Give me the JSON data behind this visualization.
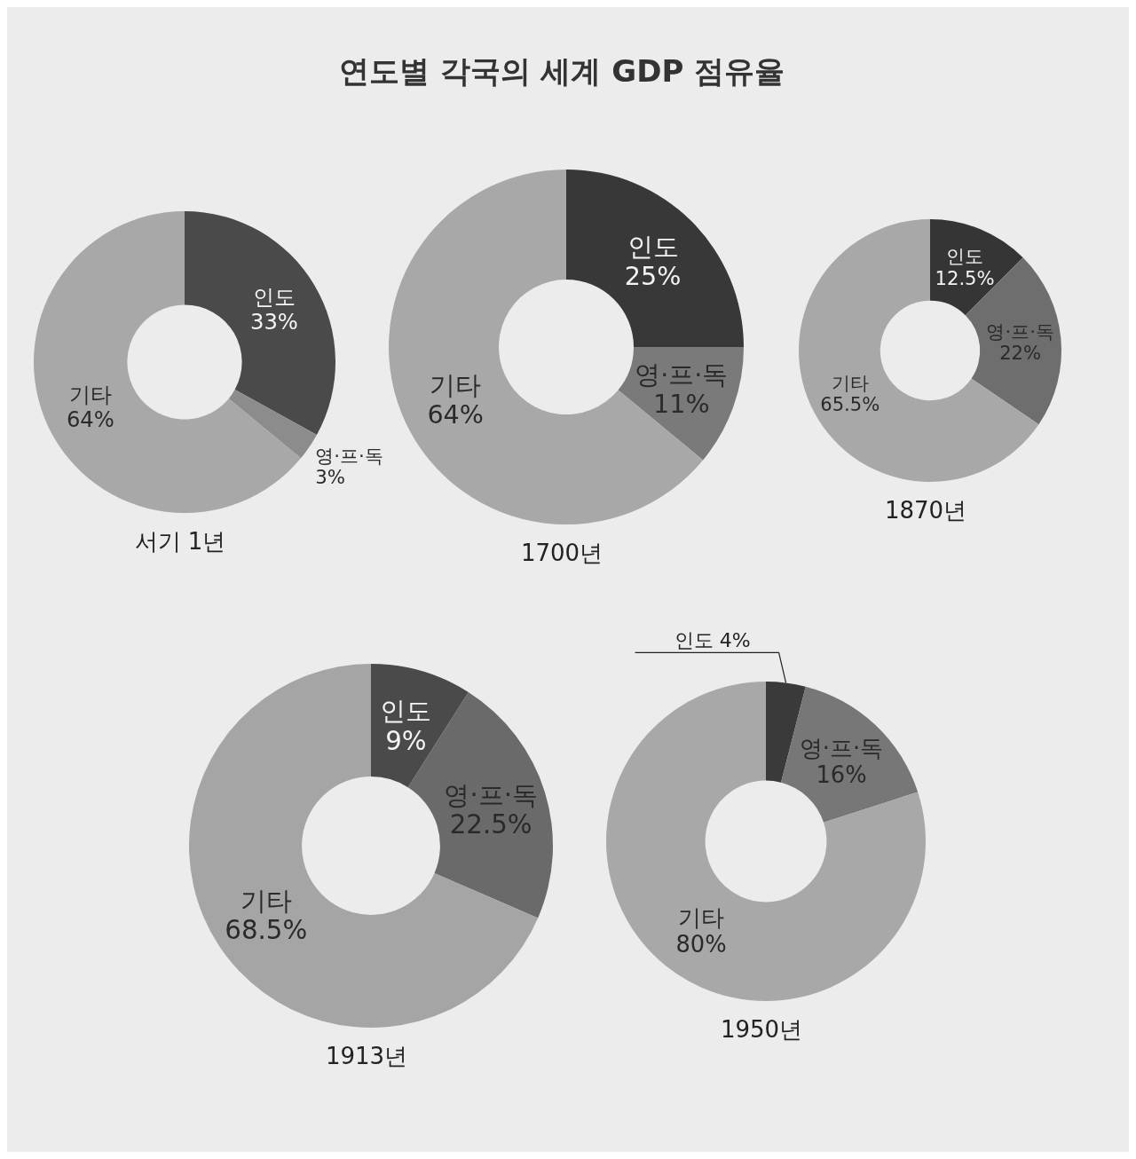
{
  "chart_data": [
    {
      "type": "donut",
      "xlabel": "서기 1년",
      "categories": [
        "인도",
        "영·프·독",
        "기타"
      ],
      "values": [
        33,
        3,
        64
      ],
      "value_labels": [
        "33%",
        "3%",
        "64%"
      ],
      "colors": [
        "#4a4a4a",
        "#8c8c8c",
        "#a8a8a8"
      ],
      "data_labels": true
    },
    {
      "type": "donut",
      "title": "연도별 각국의 세계 GDP 점유율",
      "xlabel": "1700년",
      "categories": [
        "인도",
        "영·프·독",
        "기타"
      ],
      "values": [
        25,
        11,
        64
      ],
      "value_labels": [
        "25%",
        "11%",
        "64%"
      ],
      "colors": [
        "#383838",
        "#7a7a7a",
        "#a8a8a8"
      ],
      "data_labels": true
    },
    {
      "type": "donut",
      "xlabel": "1870년",
      "categories": [
        "인도",
        "영·프·독",
        "기타"
      ],
      "values": [
        12.5,
        22,
        65.5
      ],
      "value_labels": [
        "12.5%",
        "22%",
        "65.5%"
      ],
      "colors": [
        "#353535",
        "#6e6e6e",
        "#a8a8a8"
      ],
      "data_labels": true
    },
    {
      "type": "donut",
      "xlabel": "1913년",
      "categories": [
        "인도",
        "영·프·독",
        "기타"
      ],
      "values": [
        9,
        22.5,
        68.5
      ],
      "value_labels": [
        "9%",
        "22.5%",
        "68.5%"
      ],
      "colors": [
        "#4a4a4a",
        "#6a6a6a",
        "#a5a5a5"
      ],
      "data_labels": true
    },
    {
      "type": "donut",
      "xlabel": "1950년",
      "categories": [
        "인도",
        "영·프·독",
        "기타"
      ],
      "values": [
        4,
        16,
        80
      ],
      "value_labels": [
        "4%",
        "16%",
        "80%"
      ],
      "colors": [
        "#3a3a3a",
        "#777777",
        "#a8a8a8"
      ],
      "data_labels": true
    }
  ]
}
